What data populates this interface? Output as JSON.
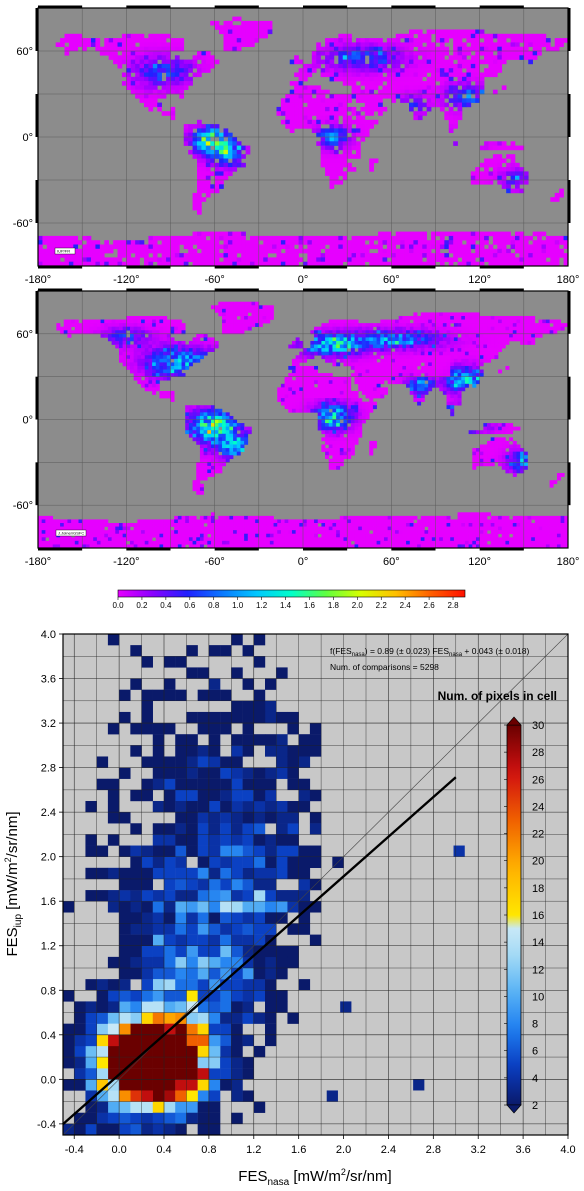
{
  "chart_data": [
    {
      "type": "heatmap",
      "panel": "map-top",
      "x_ticks": [
        "-180°",
        "-120°",
        "-60°",
        "0°",
        "60°",
        "120°",
        "180°"
      ],
      "y_ticks": [
        "60°",
        "0°",
        "-60°"
      ],
      "xlim": [
        -180,
        180
      ],
      "ylim": [
        -90,
        90
      ],
      "credit": "IUP/FR",
      "grid": true,
      "ocean_color": "#8c8c8c"
    },
    {
      "type": "heatmap",
      "panel": "map-bottom",
      "x_ticks": [
        "-180°",
        "-120°",
        "-60°",
        "0°",
        "60°",
        "120°",
        "180°"
      ],
      "y_ticks": [
        "60°",
        "0°",
        "-60°"
      ],
      "xlim": [
        -180,
        180
      ],
      "ylim": [
        -90,
        90
      ],
      "credit": "J.Joiner/GSFC",
      "grid": true,
      "ocean_color": "#8c8c8c"
    },
    {
      "type": "colorbar",
      "ticks": [
        "0.0",
        "0.2",
        "0.4",
        "0.6",
        "0.8",
        "1.0",
        "1.2",
        "1.4",
        "1.6",
        "1.8",
        "2.0",
        "2.2",
        "2.4",
        "2.6",
        "2.8"
      ],
      "range": [
        0,
        2.9
      ],
      "colors": [
        "#e600ff",
        "#8a00ff",
        "#2020ff",
        "#0a78ff",
        "#00c8ff",
        "#00ffc8",
        "#60ff40",
        "#d8ff00",
        "#ffc000",
        "#ff6000",
        "#ff1000"
      ]
    },
    {
      "type": "heatmap",
      "panel": "scatter-density",
      "xlabel_main": "FES",
      "xlabel_sub": "nasa",
      "xlabel_unit_pre": " [mW/m",
      "xlabel_unit_sup": "2",
      "xlabel_unit_post": "/sr/nm]",
      "ylabel_main": "FES",
      "ylabel_sub": "iup",
      "ylabel_unit_pre": " [mW/m",
      "ylabel_unit_sup": "2",
      "ylabel_unit_post": "/sr/nm]",
      "xlim": [
        -0.5,
        4.0
      ],
      "ylim": [
        -0.5,
        4.0
      ],
      "x_ticks": [
        "-0.4",
        "0.0",
        "0.4",
        "0.8",
        "1.2",
        "1.6",
        "2.0",
        "2.4",
        "2.8",
        "3.2",
        "3.6",
        "4.0"
      ],
      "y_ticks": [
        "-0.4",
        "0.0",
        "0.4",
        "0.8",
        "1.2",
        "1.6",
        "2.0",
        "2.4",
        "2.8",
        "3.2",
        "3.6",
        "4.0"
      ],
      "fit": {
        "slope": 0.89,
        "intercept": 0.043,
        "x_end": 3.0
      },
      "one_to_one": true,
      "annotation_fit_pre": "f(FES",
      "annotation_fit_sub1": "nasa",
      "annotation_fit_mid": ") = 0.89  (± 0.023) FES",
      "annotation_fit_sub2": "nasa",
      "annotation_fit_post": " + 0.043 (± 0.018)",
      "annotation_count": "Num. of comparisons = 5298",
      "legend_title": "Num. of pixels in cell",
      "colorbar_ticks": [
        "30",
        "28",
        "26",
        "24",
        "22",
        "20",
        "18",
        "16",
        "14",
        "12",
        "10",
        "8",
        "6",
        "4",
        "2"
      ],
      "colorbar_range": [
        2,
        30
      ],
      "cells_count": 5298,
      "cell_size": 0.1,
      "grid": true,
      "background_color": "#c8c8c8"
    }
  ]
}
